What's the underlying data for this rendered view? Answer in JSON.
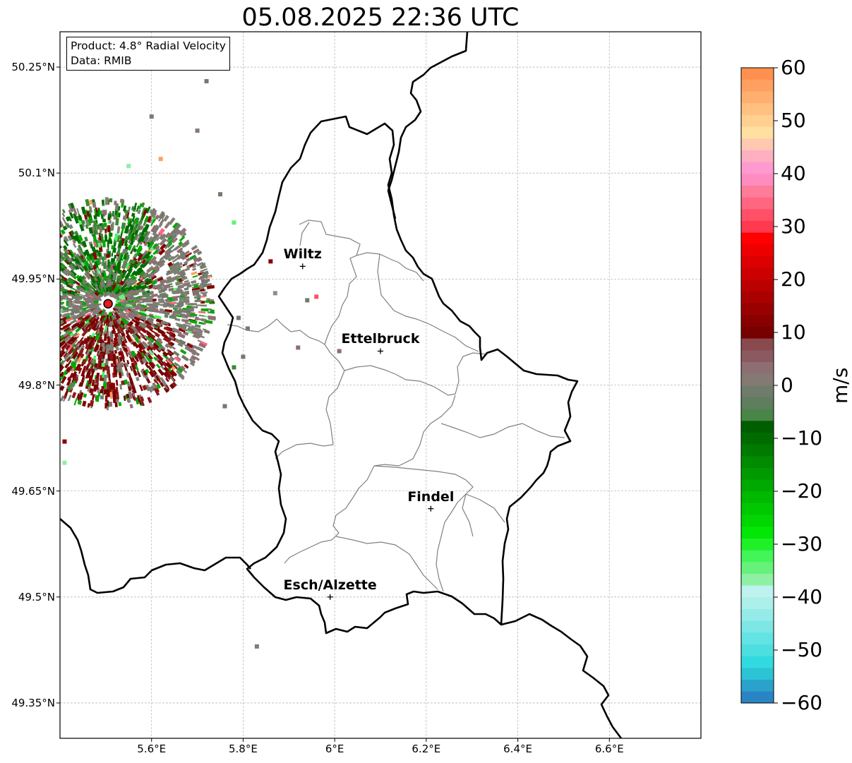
{
  "title": "05.08.2025 22:36 UTC",
  "info_box": {
    "product": "Product: 4.8° Radial Velocity",
    "source": "Data: RMIB"
  },
  "map_extent": {
    "lon_min": 5.4,
    "lon_max": 6.8,
    "lat_min": 49.3,
    "lat_max": 50.3
  },
  "lat_ticks": [
    "50.25°N",
    "50.1°N",
    "49.95°N",
    "49.8°N",
    "49.65°N",
    "49.5°N",
    "49.35°N"
  ],
  "lat_values": [
    50.25,
    50.1,
    49.95,
    49.8,
    49.65,
    49.5,
    49.35
  ],
  "lon_ticks": [
    "5.6°E",
    "5.8°E",
    "6°E",
    "6.2°E",
    "6.4°E",
    "6.6°E"
  ],
  "lon_values": [
    5.6,
    5.8,
    6.0,
    6.2,
    6.4,
    6.6
  ],
  "radar_site": {
    "lon": 5.505,
    "lat": 49.915
  },
  "cities": [
    {
      "name": "Wiltz",
      "lon": 5.93,
      "lat": 49.968
    },
    {
      "name": "Ettelbruck",
      "lon": 6.1,
      "lat": 49.848
    },
    {
      "name": "Findel",
      "lon": 6.21,
      "lat": 49.625
    },
    {
      "name": "Esch/Alzette",
      "lon": 5.99,
      "lat": 49.5
    }
  ],
  "colorbar": {
    "min": -60,
    "max": 60,
    "unit": "m/s",
    "ticks": [
      "60",
      "50",
      "40",
      "30",
      "20",
      "10",
      "0",
      "−10",
      "−20",
      "−30",
      "−40",
      "−50",
      "−60"
    ],
    "tick_values": [
      60,
      50,
      40,
      30,
      20,
      10,
      0,
      -10,
      -20,
      -30,
      -40,
      -50,
      -60
    ],
    "colors": [
      "#2a84c4",
      "#2aa2cc",
      "#2cc4d4",
      "#31dade",
      "#4ddfe0",
      "#63e3e3",
      "#7de7e6",
      "#95ebe8",
      "#acefeb",
      "#bdf2ee",
      "#8ef0a5",
      "#66f27a",
      "#44f55a",
      "#20f027",
      "#04e605",
      "#00d700",
      "#00c800",
      "#00b900",
      "#00a900",
      "#009a00",
      "#008b00",
      "#007b00",
      "#006c00",
      "#005e00",
      "#4a8548",
      "#5e7e5e",
      "#6f7b6b",
      "#857973",
      "#8d6e74",
      "#8b5a60",
      "#884a4e",
      "#770000",
      "#880000",
      "#990000",
      "#aa0000",
      "#bb0000",
      "#cc0000",
      "#dd0000",
      "#ee0000",
      "#ff0000",
      "#ff3a4e",
      "#ff5068",
      "#ff6680",
      "#ff7c98",
      "#ff8cc0",
      "#ff9ad0",
      "#ffb0c0",
      "#ffc8b0",
      "#ffe0a0",
      "#ffd090",
      "#ffc080",
      "#ffb070",
      "#ffa060",
      "#ff9050"
    ]
  }
}
